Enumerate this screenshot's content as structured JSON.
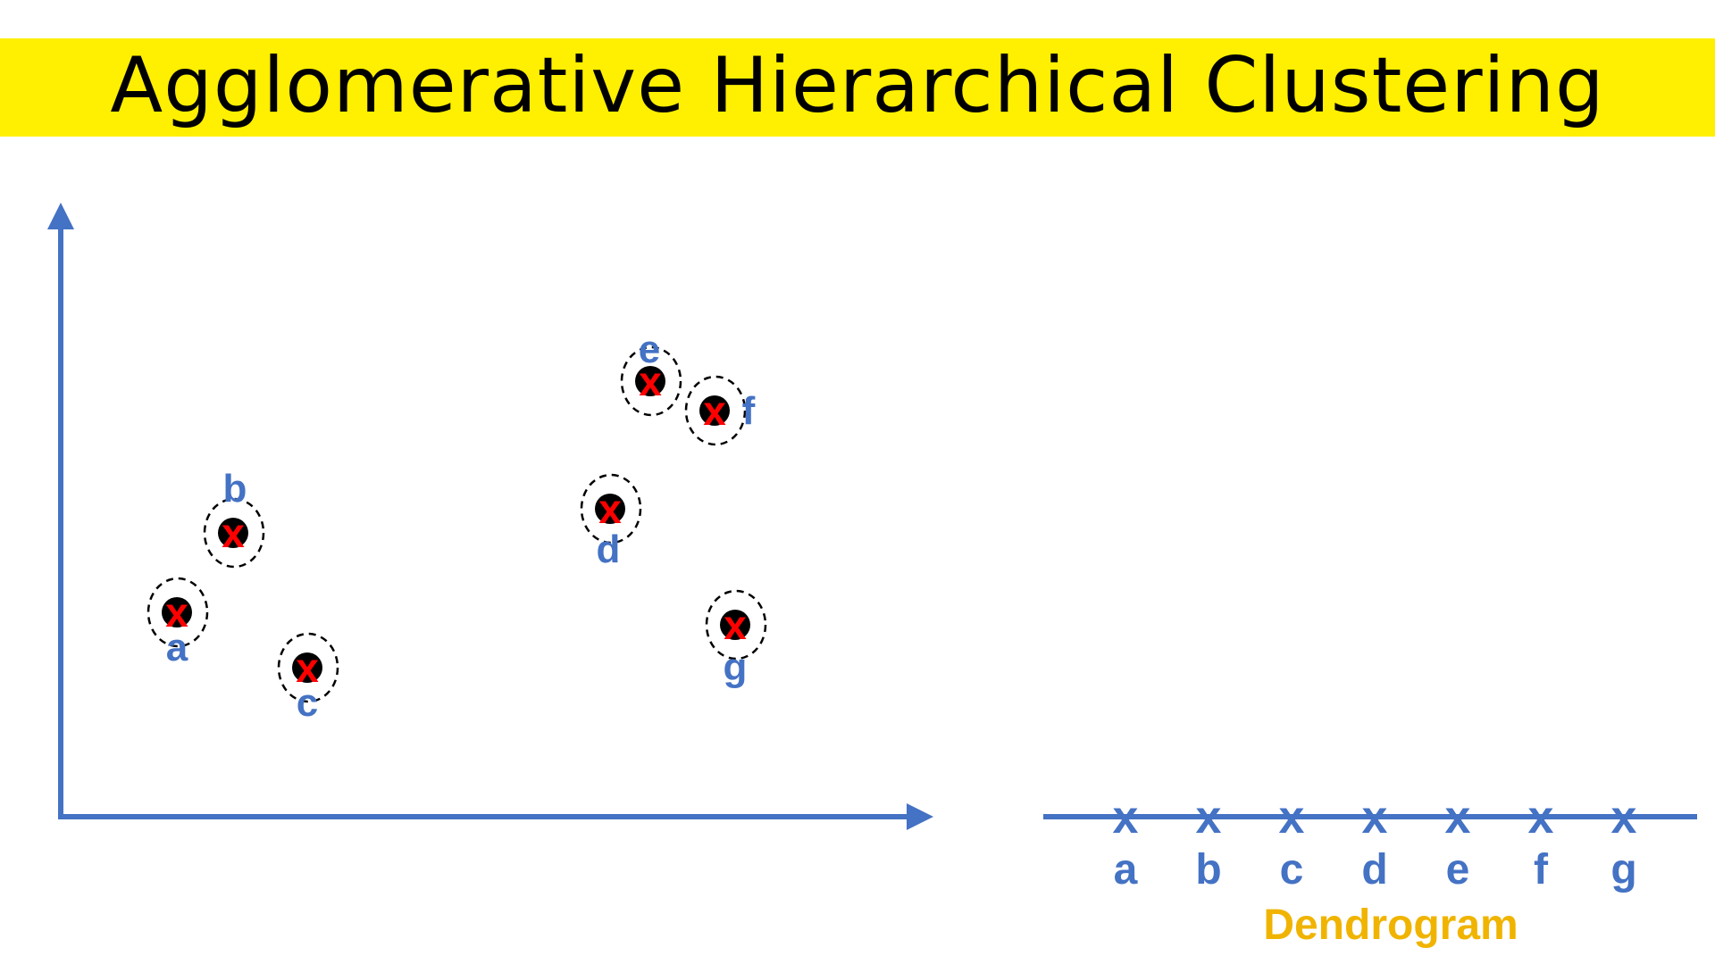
{
  "title": "Agglomerative Hierarchical Clustering",
  "colors": {
    "title_bg": "#ffef00",
    "axis": "#4472c4",
    "label": "#4472c4",
    "marker": "#ff0000",
    "dot": "#000000",
    "dendrogram_label": "#f0b400"
  },
  "points": [
    {
      "id": "a",
      "label": "a"
    },
    {
      "id": "b",
      "label": "b"
    },
    {
      "id": "c",
      "label": "c"
    },
    {
      "id": "d",
      "label": "d"
    },
    {
      "id": "e",
      "label": "e"
    },
    {
      "id": "f",
      "label": "f"
    },
    {
      "id": "g",
      "label": "g"
    }
  ],
  "dendrogram": {
    "label": "Dendrogram",
    "marker_glyph": "x",
    "leaves": [
      "a",
      "b",
      "c",
      "d",
      "e",
      "f",
      "g"
    ]
  }
}
